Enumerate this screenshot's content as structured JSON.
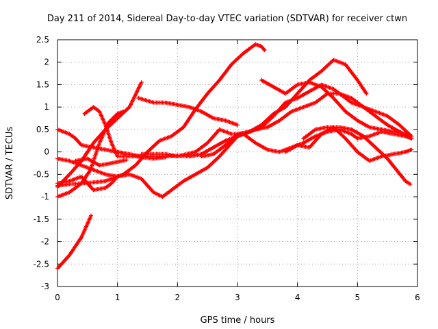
{
  "chart_data": {
    "type": "scatter",
    "title": "Day 211 of 2014, Sidereal Day-to-day VTEC variation (SDTVAR) for receiver ctwn",
    "xlabel": "GPS time / hours",
    "ylabel": "SDTVAR / TECUs",
    "xlim": [
      0,
      6
    ],
    "ylim": [
      -3,
      2.5
    ],
    "xticks": [
      0,
      1,
      2,
      3,
      4,
      5,
      6
    ],
    "yticks": [
      -3,
      -2.5,
      -2,
      -1.5,
      -1,
      -0.5,
      0,
      0.5,
      1,
      1.5,
      2,
      2.5
    ],
    "grid": true,
    "marker": "plus",
    "color": "#ff0000",
    "series": [
      {
        "points": [
          [
            0.0,
            -2.6
          ],
          [
            0.2,
            -2.3
          ],
          [
            0.4,
            -1.9
          ],
          [
            0.56,
            -1.42
          ]
        ]
      },
      {
        "points": [
          [
            0.0,
            -0.78
          ],
          [
            0.2,
            -0.5
          ],
          [
            0.4,
            -0.2
          ],
          [
            0.6,
            0.2
          ],
          [
            0.8,
            0.5
          ],
          [
            1.0,
            0.75
          ],
          [
            1.2,
            1.0
          ],
          [
            1.4,
            1.55
          ]
        ]
      },
      {
        "points": [
          [
            0.0,
            -1.0
          ],
          [
            0.2,
            -0.9
          ],
          [
            0.4,
            -0.7
          ],
          [
            0.55,
            -0.4
          ],
          [
            0.7,
            0.2
          ],
          [
            0.85,
            0.65
          ],
          [
            1.0,
            0.85
          ],
          [
            1.1,
            0.9
          ]
        ]
      },
      {
        "points": [
          [
            0.45,
            0.85
          ],
          [
            0.6,
            1.0
          ],
          [
            0.7,
            0.9
          ],
          [
            0.8,
            0.6
          ],
          [
            0.9,
            0.2
          ],
          [
            1.0,
            -0.1
          ],
          [
            1.3,
            -0.1
          ],
          [
            1.6,
            -0.15
          ],
          [
            1.8,
            -0.12
          ]
        ]
      },
      {
        "points": [
          [
            0.0,
            -0.15
          ],
          [
            0.2,
            -0.2
          ],
          [
            0.4,
            -0.3
          ],
          [
            0.6,
            -0.4
          ],
          [
            0.8,
            -0.5
          ],
          [
            1.0,
            -0.55
          ],
          [
            1.2,
            -0.5
          ],
          [
            1.4,
            -0.6
          ],
          [
            1.6,
            -0.9
          ],
          [
            1.75,
            -1.0
          ],
          [
            1.9,
            -0.85
          ],
          [
            2.1,
            -0.65
          ],
          [
            2.3,
            -0.5
          ],
          [
            2.5,
            -0.35
          ],
          [
            2.7,
            -0.1
          ],
          [
            2.9,
            0.2
          ],
          [
            3.0,
            0.35
          ],
          [
            3.2,
            0.45
          ],
          [
            3.4,
            0.55
          ],
          [
            3.6,
            0.8
          ],
          [
            3.8,
            1.1
          ],
          [
            4.0,
            1.2
          ],
          [
            4.2,
            1.35
          ],
          [
            4.4,
            1.5
          ],
          [
            4.6,
            1.4
          ],
          [
            4.8,
            1.2
          ],
          [
            4.9,
            1.1
          ],
          [
            5.1,
            1.0
          ],
          [
            5.3,
            0.9
          ],
          [
            5.5,
            0.8
          ],
          [
            5.7,
            0.6
          ],
          [
            5.9,
            0.35
          ]
        ]
      },
      {
        "points": [
          [
            0.0,
            0.5
          ],
          [
            0.2,
            0.4
          ],
          [
            0.3,
            0.3
          ],
          [
            0.4,
            0.15
          ],
          [
            0.6,
            0.1
          ],
          [
            0.8,
            0.05
          ],
          [
            1.0,
            0.0
          ],
          [
            1.2,
            -0.05
          ],
          [
            1.4,
            -0.1
          ],
          [
            1.6,
            -0.1
          ],
          [
            1.8,
            -0.1
          ],
          [
            2.0,
            -0.08
          ],
          [
            2.2,
            -0.1
          ],
          [
            2.4,
            -0.05
          ],
          [
            2.6,
            0.1
          ],
          [
            2.8,
            0.25
          ],
          [
            3.0,
            0.35
          ],
          [
            3.1,
            0.4
          ],
          [
            3.3,
            0.2
          ],
          [
            3.5,
            0.05
          ],
          [
            3.7,
            0.0
          ],
          [
            3.9,
            0.1
          ],
          [
            4.1,
            0.2
          ],
          [
            4.3,
            0.35
          ],
          [
            4.5,
            0.45
          ],
          [
            4.7,
            0.5
          ],
          [
            4.9,
            0.4
          ],
          [
            5.0,
            0.3
          ],
          [
            5.2,
            0.35
          ],
          [
            5.4,
            0.45
          ],
          [
            5.6,
            0.4
          ],
          [
            5.8,
            0.35
          ],
          [
            5.9,
            0.3
          ]
        ]
      },
      {
        "points": [
          [
            0.0,
            -0.75
          ],
          [
            0.2,
            -0.72
          ],
          [
            0.4,
            -0.7
          ],
          [
            0.6,
            -0.68
          ],
          [
            0.8,
            -0.65
          ],
          [
            1.0,
            -0.55
          ],
          [
            1.1,
            -0.5
          ],
          [
            1.3,
            -0.3
          ],
          [
            1.5,
            0.0
          ],
          [
            1.7,
            0.25
          ],
          [
            1.9,
            0.35
          ],
          [
            2.1,
            0.55
          ],
          [
            2.3,
            0.95
          ],
          [
            2.5,
            1.3
          ],
          [
            2.7,
            1.6
          ],
          [
            2.9,
            1.95
          ],
          [
            3.1,
            2.2
          ],
          [
            3.3,
            2.4
          ],
          [
            3.4,
            2.35
          ],
          [
            3.45,
            2.27
          ]
        ]
      },
      {
        "points": [
          [
            0.0,
            -0.7
          ],
          [
            0.2,
            -0.65
          ],
          [
            0.4,
            -0.55
          ],
          [
            0.6,
            -0.85
          ],
          [
            0.8,
            -0.8
          ],
          [
            0.9,
            -0.7
          ],
          [
            1.0,
            -0.55
          ]
        ]
      },
      {
        "points": [
          [
            0.3,
            -0.2
          ],
          [
            0.5,
            -0.15
          ],
          [
            0.7,
            -0.3
          ],
          [
            0.9,
            -0.25
          ],
          [
            1.15,
            -0.18
          ]
        ]
      },
      {
        "points": [
          [
            1.35,
            1.2
          ],
          [
            1.6,
            1.1
          ],
          [
            1.8,
            1.1
          ],
          [
            2.0,
            1.05
          ],
          [
            2.2,
            1.0
          ],
          [
            2.4,
            0.9
          ],
          [
            2.6,
            0.75
          ],
          [
            2.8,
            0.7
          ],
          [
            3.0,
            0.6
          ]
        ]
      },
      {
        "points": [
          [
            1.4,
            -0.05
          ],
          [
            1.8,
            -0.05
          ],
          [
            2.0,
            -0.1
          ],
          [
            2.3,
            0.0
          ],
          [
            2.5,
            0.2
          ],
          [
            2.7,
            0.5
          ],
          [
            2.9,
            0.4
          ],
          [
            3.1,
            0.4
          ],
          [
            3.3,
            0.5
          ],
          [
            3.5,
            0.55
          ],
          [
            3.7,
            0.7
          ],
          [
            3.9,
            0.9
          ],
          [
            4.1,
            1.0
          ],
          [
            4.3,
            1.1
          ],
          [
            4.5,
            1.3
          ],
          [
            4.7,
            1.3
          ],
          [
            4.9,
            1.2
          ],
          [
            5.1,
            1.0
          ],
          [
            5.3,
            0.8
          ],
          [
            5.5,
            0.6
          ],
          [
            5.7,
            0.45
          ],
          [
            5.9,
            0.3
          ]
        ]
      },
      {
        "points": [
          [
            2.4,
            -0.1
          ],
          [
            2.6,
            -0.05
          ],
          [
            2.8,
            0.15
          ],
          [
            3.0,
            0.4
          ],
          [
            3.2,
            0.45
          ],
          [
            3.4,
            0.6
          ],
          [
            3.6,
            0.85
          ],
          [
            3.8,
            1.0
          ],
          [
            4.0,
            1.3
          ],
          [
            4.2,
            1.6
          ],
          [
            4.4,
            1.8
          ],
          [
            4.6,
            2.05
          ],
          [
            4.8,
            1.95
          ],
          [
            5.0,
            1.6
          ],
          [
            5.15,
            1.3
          ]
        ]
      },
      {
        "points": [
          [
            3.4,
            1.6
          ],
          [
            3.6,
            1.45
          ],
          [
            3.8,
            1.3
          ],
          [
            4.0,
            1.5
          ],
          [
            4.2,
            1.55
          ],
          [
            4.4,
            1.45
          ],
          [
            4.6,
            1.2
          ],
          [
            4.8,
            0.9
          ],
          [
            5.0,
            0.7
          ],
          [
            5.2,
            0.55
          ],
          [
            5.4,
            0.5
          ],
          [
            5.6,
            0.45
          ],
          [
            5.8,
            0.4
          ],
          [
            5.9,
            0.35
          ]
        ]
      },
      {
        "points": [
          [
            3.8,
            0.0
          ],
          [
            4.0,
            0.15
          ],
          [
            4.2,
            0.1
          ],
          [
            4.4,
            0.4
          ],
          [
            4.6,
            0.55
          ],
          [
            4.8,
            0.3
          ],
          [
            5.0,
            0.0
          ],
          [
            5.2,
            -0.2
          ],
          [
            5.4,
            -0.1
          ],
          [
            5.6,
            -0.05
          ],
          [
            5.8,
            0.0
          ],
          [
            5.9,
            0.05
          ]
        ]
      },
      {
        "points": [
          [
            4.1,
            0.3
          ],
          [
            4.3,
            0.5
          ],
          [
            4.5,
            0.55
          ],
          [
            4.7,
            0.55
          ],
          [
            4.9,
            0.5
          ],
          [
            5.1,
            0.35
          ],
          [
            5.3,
            0.1
          ],
          [
            5.5,
            -0.15
          ],
          [
            5.65,
            -0.4
          ],
          [
            5.8,
            -0.65
          ],
          [
            5.88,
            -0.72
          ]
        ]
      }
    ]
  }
}
